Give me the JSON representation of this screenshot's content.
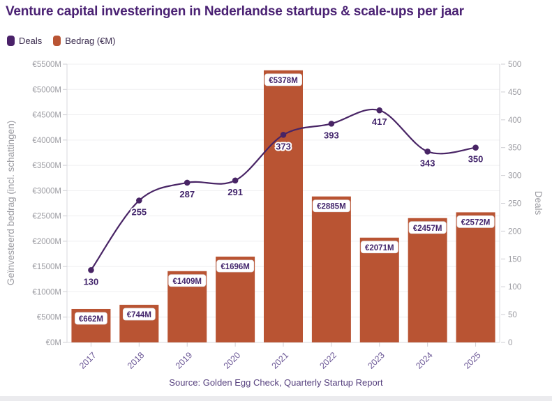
{
  "header": {
    "title": "Venture capital investeringen in Nederlandse startups & scale-ups per jaar"
  },
  "legend": {
    "items": [
      {
        "label": "Deals",
        "color": "#4A2169",
        "marker": "rounded-rect"
      },
      {
        "label": "Bedrag (€M)",
        "color": "#B95433",
        "marker": "rounded-rect"
      }
    ]
  },
  "chart_data": {
    "type": "combo",
    "categories": [
      "2017",
      "2018",
      "2019",
      "2020",
      "2021",
      "2022",
      "2023",
      "2024",
      "2025"
    ],
    "series": [
      {
        "name": "Bedrag (€M)",
        "type": "bar",
        "axis": "left",
        "color": "#B95433",
        "values": [
          662,
          744,
          1409,
          1696,
          5378,
          2885,
          2071,
          2457,
          2572
        ],
        "data_labels": [
          "€662M",
          "€744M",
          "€1409M",
          "€1696M",
          "€5378M",
          "€2885M",
          "€2071M",
          "€2457M",
          "€2572M"
        ]
      },
      {
        "name": "Deals",
        "type": "line",
        "axis": "right",
        "color": "#482465",
        "values": [
          130,
          255,
          287,
          291,
          373,
          393,
          417,
          343,
          350
        ],
        "data_labels": [
          "130",
          "255",
          "287",
          "291",
          "373",
          "393",
          "417",
          "343",
          "350"
        ]
      }
    ],
    "left_axis": {
      "label": "Geïnvesteerd bedrag (incl. schattingen)",
      "min": 0,
      "max": 5500,
      "step": 500,
      "tick_format": "€{v}M"
    },
    "right_axis": {
      "label": "Deals",
      "min": 0,
      "max": 500,
      "step": 50,
      "tick_format": "{v}"
    },
    "grid": true,
    "legend_position": "top-left"
  },
  "footer": {
    "source": "Source: Golden Egg Check, Quarterly Startup Report"
  },
  "colors": {
    "title": "#4A2173",
    "bar": "#B95433",
    "line": "#482465",
    "bar_label_text": "#42246B",
    "line_label_text": "#42246B",
    "axis_tick_text": "#9B9BA1",
    "axis_title_text": "#9B9BA1",
    "year_label_text": "#6B5796",
    "source_text": "#56407E",
    "grid_line": "#EFEFF1",
    "axis_line": "#D8D8DC",
    "tick_mark": "#CFCFD4",
    "legend_text": "#3A2B4E",
    "background": "#FFFFFF",
    "footer_strip": "#EBEBEE"
  }
}
